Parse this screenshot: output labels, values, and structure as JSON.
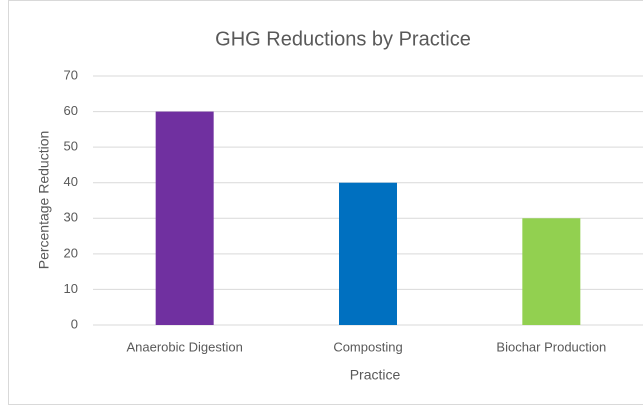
{
  "chart_data": {
    "type": "bar",
    "title": "GHG Reductions by Practice",
    "x_label": "Practice",
    "y_label": "Percentage Reduction",
    "categories": [
      "Anaerobic Digestion",
      "Composting",
      "Biochar Production"
    ],
    "values": [
      60,
      40,
      30
    ],
    "colors": [
      "#7030a0",
      "#0070c0",
      "#92d050"
    ],
    "ylim": [
      0,
      70
    ],
    "yticks": [
      0,
      10,
      20,
      30,
      40,
      50,
      60,
      70
    ],
    "grid": true
  }
}
